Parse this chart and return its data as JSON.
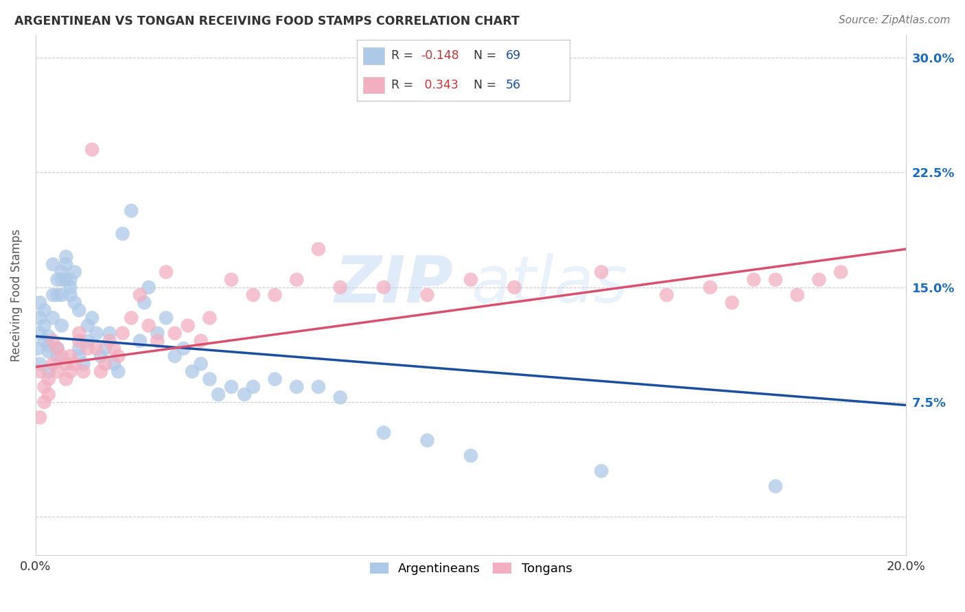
{
  "title": "ARGENTINEAN VS TONGAN RECEIVING FOOD STAMPS CORRELATION CHART",
  "source": "Source: ZipAtlas.com",
  "ylabel": "Receiving Food Stamps",
  "y_ticks": [
    0.0,
    0.075,
    0.15,
    0.225,
    0.3
  ],
  "y_tick_labels": [
    "",
    "7.5%",
    "15.0%",
    "22.5%",
    "30.0%"
  ],
  "x_min": 0.0,
  "x_max": 0.2,
  "y_min": -0.025,
  "y_max": 0.315,
  "blue_color": "#adc9e8",
  "pink_color": "#f2afc0",
  "blue_line_color": "#1a4fa0",
  "pink_line_color": "#d94f6e",
  "bottom_legend_argentineans": "Argentineans",
  "bottom_legend_tongans": "Tongans",
  "blue_R": -0.148,
  "blue_N": 69,
  "pink_R": 0.343,
  "pink_N": 56,
  "blue_line_x0": 0.0,
  "blue_line_y0": 0.118,
  "blue_line_x1": 0.2,
  "blue_line_y1": 0.073,
  "pink_line_x0": 0.0,
  "pink_line_y0": 0.098,
  "pink_line_x1": 0.2,
  "pink_line_y1": 0.175,
  "argentinean_x": [
    0.0005,
    0.001,
    0.001,
    0.001,
    0.001,
    0.002,
    0.002,
    0.002,
    0.003,
    0.003,
    0.003,
    0.003,
    0.004,
    0.004,
    0.004,
    0.005,
    0.005,
    0.005,
    0.005,
    0.006,
    0.006,
    0.006,
    0.006,
    0.007,
    0.007,
    0.007,
    0.008,
    0.008,
    0.008,
    0.009,
    0.009,
    0.01,
    0.01,
    0.01,
    0.011,
    0.012,
    0.012,
    0.013,
    0.014,
    0.015,
    0.016,
    0.017,
    0.018,
    0.019,
    0.02,
    0.022,
    0.024,
    0.025,
    0.026,
    0.028,
    0.03,
    0.032,
    0.034,
    0.036,
    0.038,
    0.04,
    0.042,
    0.045,
    0.048,
    0.05,
    0.055,
    0.06,
    0.065,
    0.07,
    0.08,
    0.09,
    0.1,
    0.13,
    0.17
  ],
  "argentinean_y": [
    0.11,
    0.12,
    0.13,
    0.14,
    0.1,
    0.125,
    0.135,
    0.115,
    0.118,
    0.108,
    0.112,
    0.095,
    0.13,
    0.145,
    0.165,
    0.145,
    0.155,
    0.11,
    0.105,
    0.16,
    0.155,
    0.145,
    0.125,
    0.155,
    0.165,
    0.17,
    0.15,
    0.155,
    0.145,
    0.14,
    0.16,
    0.11,
    0.135,
    0.105,
    0.1,
    0.115,
    0.125,
    0.13,
    0.12,
    0.105,
    0.11,
    0.12,
    0.1,
    0.095,
    0.185,
    0.2,
    0.115,
    0.14,
    0.15,
    0.12,
    0.13,
    0.105,
    0.11,
    0.095,
    0.1,
    0.09,
    0.08,
    0.085,
    0.08,
    0.085,
    0.09,
    0.085,
    0.085,
    0.078,
    0.055,
    0.05,
    0.04,
    0.03,
    0.02
  ],
  "tongan_x": [
    0.001,
    0.001,
    0.002,
    0.002,
    0.003,
    0.003,
    0.004,
    0.004,
    0.005,
    0.005,
    0.006,
    0.007,
    0.007,
    0.008,
    0.008,
    0.009,
    0.01,
    0.01,
    0.011,
    0.012,
    0.013,
    0.014,
    0.015,
    0.016,
    0.017,
    0.018,
    0.019,
    0.02,
    0.022,
    0.024,
    0.026,
    0.028,
    0.03,
    0.032,
    0.035,
    0.038,
    0.04,
    0.045,
    0.05,
    0.055,
    0.06,
    0.065,
    0.07,
    0.08,
    0.09,
    0.1,
    0.11,
    0.13,
    0.145,
    0.155,
    0.16,
    0.165,
    0.17,
    0.175,
    0.18,
    0.185
  ],
  "tongan_y": [
    0.065,
    0.095,
    0.075,
    0.085,
    0.08,
    0.09,
    0.1,
    0.115,
    0.095,
    0.11,
    0.105,
    0.09,
    0.1,
    0.095,
    0.105,
    0.1,
    0.115,
    0.12,
    0.095,
    0.11,
    0.24,
    0.11,
    0.095,
    0.1,
    0.115,
    0.11,
    0.105,
    0.12,
    0.13,
    0.145,
    0.125,
    0.115,
    0.16,
    0.12,
    0.125,
    0.115,
    0.13,
    0.155,
    0.145,
    0.145,
    0.155,
    0.175,
    0.15,
    0.15,
    0.145,
    0.155,
    0.15,
    0.16,
    0.145,
    0.15,
    0.14,
    0.155,
    0.155,
    0.145,
    0.155,
    0.16
  ]
}
